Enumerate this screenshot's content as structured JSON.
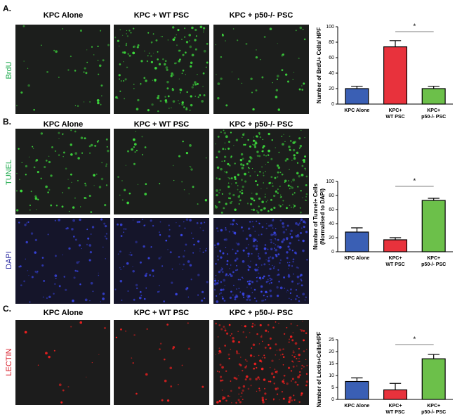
{
  "panels": [
    {
      "label": "A.",
      "columns": [
        "KPC Alone",
        "KPC + WT PSC",
        "KPC + p50-/- PSC"
      ],
      "rows": [
        "BrdU"
      ]
    },
    {
      "label": "B.",
      "columns": [
        "KPC Alone",
        "KPC + WT PSC",
        "KPC + p50-/- PSC"
      ],
      "rows": [
        "TUNEL",
        "DAPI"
      ]
    },
    {
      "label": "C.",
      "columns": [
        "KPC Alone",
        "KPC + WT PSC",
        "KPC + p50-/- PSC"
      ],
      "rows": [
        "LECTIN"
      ]
    }
  ],
  "chart_data": [
    {
      "type": "bar",
      "ylabel": [
        "Number of BrdU+ Cells/ HPF"
      ],
      "categories": [
        [
          "KPC Alone"
        ],
        [
          "KPC+",
          "WT PSC"
        ],
        [
          "KPC+",
          "p50-/- PSC"
        ]
      ],
      "values": [
        20,
        74,
        20
      ],
      "errors": [
        3,
        8,
        3
      ],
      "colors": [
        "#3a5fb4",
        "#e8323c",
        "#6cc04a"
      ],
      "ylim": [
        0,
        100
      ],
      "yticks": [
        0,
        20,
        40,
        60,
        80,
        100
      ],
      "annotation": "*"
    },
    {
      "type": "bar",
      "ylabel": [
        "Number of Tunnel+ Cells",
        "(Normalised to DAPI)"
      ],
      "categories": [
        [
          "KPC Alone"
        ],
        [
          "KPC+",
          "WT PSC"
        ],
        [
          "KPC+",
          "p50-/- PSC"
        ]
      ],
      "values": [
        28,
        17,
        73
      ],
      "errors": [
        6,
        3,
        3
      ],
      "colors": [
        "#3a5fb4",
        "#e8323c",
        "#6cc04a"
      ],
      "ylim": [
        0,
        100
      ],
      "yticks": [
        0,
        20,
        40,
        60,
        80,
        100
      ],
      "annotation": "*"
    },
    {
      "type": "bar",
      "ylabel": [
        "Number of  Lectin+Cells/HPF"
      ],
      "categories": [
        [
          "KPC Alone"
        ],
        [
          "KPC+",
          "WT PSC"
        ],
        [
          "KPC+",
          "p50-/- PSC"
        ]
      ],
      "values": [
        7.5,
        4,
        17
      ],
      "errors": [
        1.5,
        2.7,
        1.8
      ],
      "colors": [
        "#3a5fb4",
        "#e8323c",
        "#6cc04a"
      ],
      "ylim": [
        0,
        25
      ],
      "yticks": [
        0,
        5,
        10,
        15,
        20,
        25
      ],
      "annotation": "*"
    }
  ]
}
